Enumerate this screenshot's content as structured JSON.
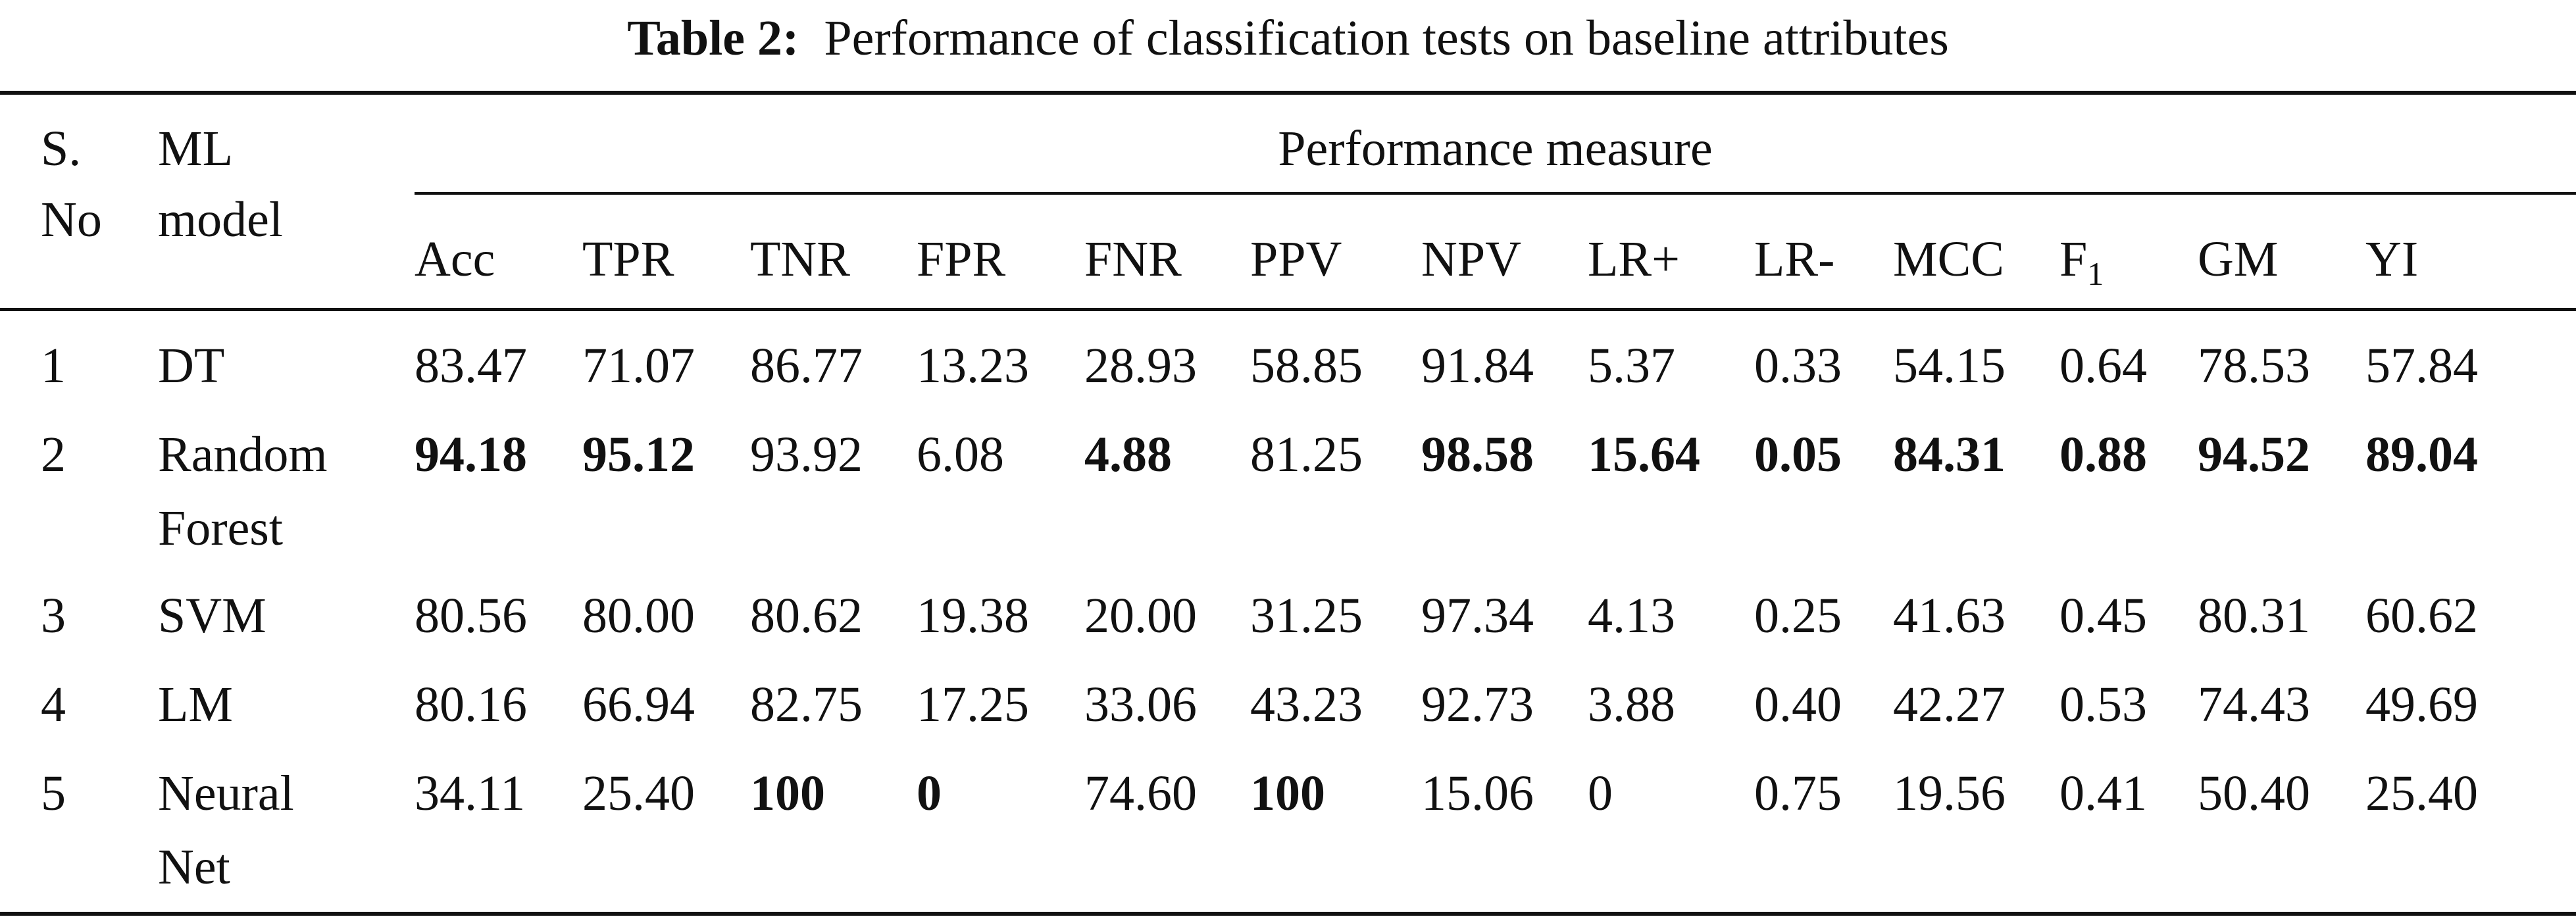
{
  "caption": {
    "label": "Table 2:",
    "text": "Performance of classification tests on baseline attributes"
  },
  "header": {
    "sno_line1": "S.",
    "sno_line2": "No",
    "model_line1": "ML",
    "model_line2": "model",
    "group": "Performance measure",
    "metrics": [
      {
        "main": "Acc",
        "sub": ""
      },
      {
        "main": "TPR",
        "sub": ""
      },
      {
        "main": "TNR",
        "sub": ""
      },
      {
        "main": "FPR",
        "sub": ""
      },
      {
        "main": "FNR",
        "sub": ""
      },
      {
        "main": "PPV",
        "sub": ""
      },
      {
        "main": "NPV",
        "sub": ""
      },
      {
        "main": "LR+",
        "sub": ""
      },
      {
        "main": "LR-",
        "sub": ""
      },
      {
        "main": "MCC",
        "sub": ""
      },
      {
        "main": "F",
        "sub": "1"
      },
      {
        "main": "GM",
        "sub": ""
      },
      {
        "main": "YI",
        "sub": ""
      }
    ]
  },
  "rows": [
    {
      "sno": "1",
      "model_line1": "DT",
      "model_line2": "",
      "values": [
        "83.47",
        "71.07",
        "86.77",
        "13.23",
        "28.93",
        "58.85",
        "91.84",
        "5.37",
        "0.33",
        "54.15",
        "0.64",
        "78.53",
        "57.84"
      ],
      "bold": [
        false,
        false,
        false,
        false,
        false,
        false,
        false,
        false,
        false,
        false,
        false,
        false,
        false
      ]
    },
    {
      "sno": "2",
      "model_line1": "Random",
      "model_line2": "Forest",
      "values": [
        "94.18",
        "95.12",
        "93.92",
        "6.08",
        "4.88",
        "81.25",
        "98.58",
        "15.64",
        "0.05",
        "84.31",
        "0.88",
        "94.52",
        "89.04"
      ],
      "bold": [
        true,
        true,
        false,
        false,
        true,
        false,
        true,
        true,
        true,
        true,
        true,
        true,
        true
      ]
    },
    {
      "sno": "3",
      "model_line1": "SVM",
      "model_line2": "",
      "values": [
        "80.56",
        "80.00",
        "80.62",
        "19.38",
        "20.00",
        "31.25",
        "97.34",
        "4.13",
        "0.25",
        "41.63",
        "0.45",
        "80.31",
        "60.62"
      ],
      "bold": [
        false,
        false,
        false,
        false,
        false,
        false,
        false,
        false,
        false,
        false,
        false,
        false,
        false
      ]
    },
    {
      "sno": "4",
      "model_line1": "LM",
      "model_line2": "",
      "values": [
        "80.16",
        "66.94",
        "82.75",
        "17.25",
        "33.06",
        "43.23",
        "92.73",
        "3.88",
        "0.40",
        "42.27",
        "0.53",
        "74.43",
        "49.69"
      ],
      "bold": [
        false,
        false,
        false,
        false,
        false,
        false,
        false,
        false,
        false,
        false,
        false,
        false,
        false
      ]
    },
    {
      "sno": "5",
      "model_line1": "Neural",
      "model_line2": "Net",
      "values": [
        "34.11",
        "25.40",
        "100",
        "0",
        "74.60",
        "100",
        "15.06",
        "0",
        "0.75",
        "19.56",
        "0.41",
        "50.40",
        "25.40"
      ],
      "bold": [
        false,
        false,
        true,
        true,
        false,
        true,
        false,
        false,
        false,
        false,
        false,
        false,
        false
      ]
    }
  ]
}
